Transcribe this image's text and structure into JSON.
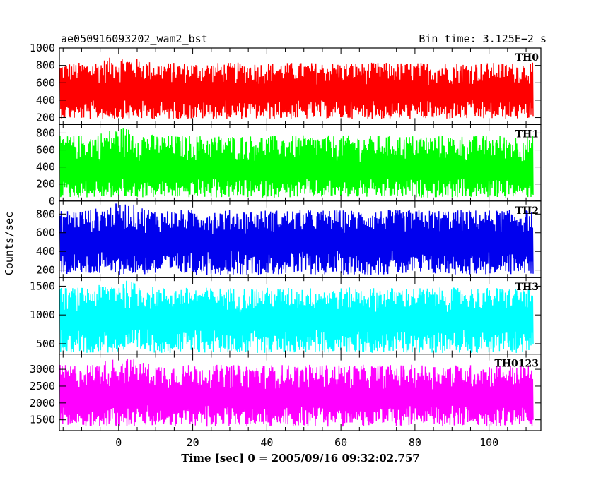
{
  "header": {
    "left_title": "ae050916093202_wam2_bst",
    "right_title": "Bin time: 3.125E−2 s"
  },
  "x_axis_label": "Time [sec] 0 = 2005/09/16 09:32:02.757",
  "y_axis_label": "Counts/sec",
  "chart_data": {
    "type": "line",
    "xlim": [
      -16,
      114
    ],
    "x_ticks": [
      0,
      20,
      40,
      60,
      80,
      100
    ],
    "x_data_range": [
      -15.8,
      111.9
    ],
    "bin_time_s": 0.03125,
    "grid": false,
    "panels": [
      {
        "name": "TH0",
        "color": "#ff0000",
        "ylim": [
          120,
          1000
        ],
        "y_ticks": [
          200,
          400,
          600,
          800,
          1000
        ],
        "series": {
          "low": 180,
          "mean": 480,
          "high": 920
        }
      },
      {
        "name": "TH1",
        "color": "#00ff00",
        "ylim": [
          0,
          900
        ],
        "y_ticks": [
          0,
          200,
          400,
          600,
          800
        ],
        "series": {
          "low": 40,
          "mean": 340,
          "high": 880
        }
      },
      {
        "name": "TH2",
        "color": "#0000ee",
        "ylim": [
          120,
          940
        ],
        "y_ticks": [
          200,
          400,
          600,
          800
        ],
        "series": {
          "low": 150,
          "mean": 500,
          "high": 930
        }
      },
      {
        "name": "TH3",
        "color": "#00ffff",
        "ylim": [
          320,
          1650
        ],
        "y_ticks": [
          500,
          1000,
          1500
        ],
        "series": {
          "low": 340,
          "mean": 900,
          "high": 1620
        }
      },
      {
        "name": "TH0123",
        "color": "#ff00ff",
        "ylim": [
          1180,
          3450
        ],
        "y_ticks": [
          1500,
          2000,
          2500,
          3000
        ],
        "series": {
          "low": 1300,
          "mean": 2150,
          "high": 3380
        }
      }
    ]
  }
}
